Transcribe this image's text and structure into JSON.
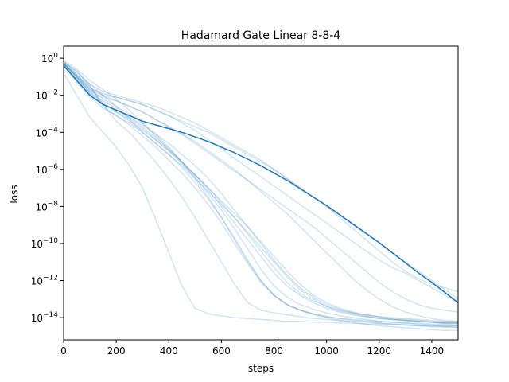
{
  "chart_data": {
    "type": "line",
    "title": "Hadamard Gate Linear 8-8-4",
    "xlabel": "steps",
    "ylabel": "loss",
    "xlim": [
      0,
      1500
    ],
    "yscale": "log",
    "ylim_log10": [
      -15.2,
      0.65
    ],
    "grid": false,
    "colors": {
      "run": "#1f77b4",
      "run_faint_opacity": 0.2,
      "axes": "#000000"
    },
    "x_ticks": [
      0,
      200,
      400,
      600,
      800,
      1000,
      1200,
      1400
    ],
    "x_tick_labels": [
      "0",
      "200",
      "400",
      "600",
      "800",
      "1000",
      "1200",
      "1400"
    ],
    "y_ticks_log10": [
      0,
      -2,
      -4,
      -6,
      -8,
      -10,
      -12,
      -14
    ],
    "y_tick_labels": [
      {
        "base": "10",
        "exp": "0"
      },
      {
        "base": "10",
        "exp": "−2"
      },
      {
        "base": "10",
        "exp": "−4"
      },
      {
        "base": "10",
        "exp": "−6"
      },
      {
        "base": "10",
        "exp": "−8"
      },
      {
        "base": "10",
        "exp": "−10"
      },
      {
        "base": "10",
        "exp": "−12"
      },
      {
        "base": "10",
        "exp": "−14"
      }
    ],
    "series_x": [
      0,
      50,
      100,
      150,
      200,
      250,
      300,
      350,
      400,
      450,
      500,
      550,
      600,
      650,
      700,
      750,
      800,
      850,
      900,
      950,
      1000,
      1050,
      1100,
      1150,
      1200,
      1250,
      1300,
      1350,
      1400,
      1450,
      1500
    ],
    "series": [
      {
        "highlight": true,
        "log10_loss": [
          -0.4,
          -1.2,
          -2.0,
          -2.5,
          -2.8,
          -3.1,
          -3.4,
          -3.6,
          -3.8,
          -4.0,
          -4.25,
          -4.5,
          -4.8,
          -5.1,
          -5.45,
          -5.8,
          -6.2,
          -6.6,
          -7.05,
          -7.5,
          -7.95,
          -8.45,
          -8.95,
          -9.45,
          -9.95,
          -10.5,
          -11.05,
          -11.6,
          -12.1,
          -12.65,
          -13.2
        ]
      },
      {
        "highlight": false,
        "log10_loss": [
          -0.8,
          -2.0,
          -3.2,
          -4.0,
          -4.8,
          -5.8,
          -7.0,
          -8.7,
          -10.5,
          -12.3,
          -13.5,
          -13.8,
          -13.9,
          -14.0,
          -14.05,
          -14.1,
          -14.15,
          -14.2,
          -14.2,
          -14.25,
          -14.25,
          -14.3,
          -14.3,
          -14.35,
          -14.35,
          -14.4,
          -14.4,
          -14.4,
          -14.45,
          -14.45,
          -14.45
        ]
      },
      {
        "highlight": false,
        "log10_loss": [
          -0.3,
          -0.9,
          -1.5,
          -2.5,
          -3.4,
          -4.0,
          -4.8,
          -5.6,
          -6.5,
          -7.5,
          -8.6,
          -9.8,
          -11.0,
          -12.2,
          -13.2,
          -13.6,
          -13.75,
          -13.85,
          -13.95,
          -14.05,
          -14.1,
          -14.15,
          -14.2,
          -14.25,
          -14.3,
          -14.35,
          -14.4,
          -14.45,
          -14.45,
          -14.5,
          -14.5
        ]
      },
      {
        "highlight": false,
        "log10_loss": [
          -0.2,
          -0.7,
          -1.5,
          -2.6,
          -3.1,
          -3.6,
          -4.2,
          -4.8,
          -5.5,
          -6.2,
          -7.0,
          -7.9,
          -8.9,
          -10.0,
          -11.1,
          -12.1,
          -12.8,
          -13.3,
          -13.6,
          -13.85,
          -14.0,
          -14.15,
          -14.25,
          -14.35,
          -14.45,
          -14.5,
          -14.55,
          -14.6,
          -14.65,
          -14.7,
          -14.7
        ]
      },
      {
        "highlight": false,
        "log10_loss": [
          -0.3,
          -1.0,
          -1.9,
          -2.5,
          -2.9,
          -3.3,
          -3.8,
          -4.4,
          -5.0,
          -5.7,
          -6.4,
          -7.3,
          -8.2,
          -9.2,
          -10.3,
          -11.4,
          -12.3,
          -12.9,
          -13.3,
          -13.55,
          -13.75,
          -13.9,
          -14.0,
          -14.1,
          -14.2,
          -14.25,
          -14.3,
          -14.35,
          -14.4,
          -14.45,
          -14.45
        ]
      },
      {
        "highlight": false,
        "log10_loss": [
          -0.4,
          -1.1,
          -1.9,
          -2.3,
          -2.7,
          -3.2,
          -3.7,
          -4.3,
          -4.9,
          -5.6,
          -6.3,
          -7.1,
          -8.0,
          -8.9,
          -9.8,
          -10.7,
          -11.6,
          -12.3,
          -12.8,
          -13.2,
          -13.5,
          -13.7,
          -13.85,
          -13.95,
          -14.05,
          -14.1,
          -14.15,
          -14.2,
          -14.25,
          -14.3,
          -14.3
        ]
      },
      {
        "highlight": false,
        "log10_loss": [
          -0.2,
          -0.8,
          -1.4,
          -2.0,
          -2.6,
          -3.3,
          -4.0,
          -4.6,
          -5.2,
          -5.8,
          -6.5,
          -7.2,
          -7.9,
          -8.6,
          -9.4,
          -10.2,
          -11.0,
          -11.8,
          -12.5,
          -13.0,
          -13.4,
          -13.65,
          -13.8,
          -13.95,
          -14.05,
          -14.1,
          -14.15,
          -14.2,
          -14.25,
          -14.3,
          -14.3
        ]
      },
      {
        "highlight": false,
        "log10_loss": [
          -0.3,
          -1.0,
          -1.8,
          -2.4,
          -2.9,
          -3.4,
          -3.9,
          -4.4,
          -5.0,
          -5.6,
          -6.3,
          -7.0,
          -7.8,
          -8.6,
          -9.5,
          -10.4,
          -11.3,
          -12.1,
          -12.7,
          -13.1,
          -13.4,
          -13.6,
          -13.75,
          -13.85,
          -13.95,
          -14.0,
          -14.05,
          -14.1,
          -14.15,
          -14.2,
          -14.2
        ]
      },
      {
        "highlight": false,
        "log10_loss": [
          -0.4,
          -1.3,
          -2.1,
          -2.7,
          -3.1,
          -3.5,
          -4.0,
          -4.6,
          -5.2,
          -5.9,
          -6.7,
          -7.6,
          -8.6,
          -9.7,
          -10.9,
          -12.0,
          -12.8,
          -13.3,
          -13.6,
          -13.8,
          -13.95,
          -14.05,
          -14.15,
          -14.2,
          -14.3,
          -14.35,
          -14.4,
          -14.45,
          -14.5,
          -14.5,
          -14.55
        ]
      },
      {
        "highlight": false,
        "log10_loss": [
          -0.1,
          -0.6,
          -1.2,
          -1.7,
          -2.2,
          -2.8,
          -3.5,
          -4.2,
          -4.9,
          -5.6,
          -6.3,
          -7.0,
          -7.7,
          -8.4,
          -9.1,
          -9.9,
          -10.7,
          -11.5,
          -12.2,
          -12.8,
          -13.2,
          -13.5,
          -13.7,
          -13.85,
          -13.95,
          -14.05,
          -14.1,
          -14.15,
          -14.2,
          -14.25,
          -14.3
        ]
      },
      {
        "highlight": false,
        "log10_loss": [
          -0.3,
          -1.0,
          -1.6,
          -2.0,
          -2.3,
          -2.6,
          -2.9,
          -3.3,
          -3.7,
          -4.1,
          -4.5,
          -5.0,
          -5.5,
          -6.0,
          -6.6,
          -7.2,
          -7.8,
          -8.4,
          -9.1,
          -9.8,
          -10.5,
          -11.2,
          -11.9,
          -12.5,
          -13.0,
          -13.4,
          -13.7,
          -13.9,
          -14.05,
          -14.15,
          -14.2
        ]
      },
      {
        "highlight": false,
        "log10_loss": [
          -0.3,
          -1.1,
          -1.8,
          -2.1,
          -2.3,
          -2.6,
          -2.9,
          -3.3,
          -3.7,
          -4.1,
          -4.6,
          -5.1,
          -5.6,
          -6.1,
          -6.6,
          -7.1,
          -7.6,
          -8.1,
          -8.6,
          -9.1,
          -9.7,
          -10.3,
          -10.9,
          -11.5,
          -12.1,
          -12.6,
          -13.0,
          -13.3,
          -13.5,
          -13.6,
          -13.7
        ]
      },
      {
        "highlight": false,
        "log10_loss": [
          -0.2,
          -0.9,
          -1.6,
          -1.9,
          -2.1,
          -2.3,
          -2.5,
          -2.8,
          -3.1,
          -3.5,
          -3.9,
          -4.4,
          -4.9,
          -5.4,
          -5.9,
          -6.4,
          -6.9,
          -7.4,
          -7.9,
          -8.4,
          -8.9,
          -9.4,
          -9.9,
          -10.4,
          -10.9,
          -11.3,
          -11.6,
          -12.0,
          -12.4,
          -12.8,
          -13.2
        ]
      },
      {
        "highlight": false,
        "log10_loss": [
          -0.3,
          -1.0,
          -1.7,
          -2.0,
          -2.1,
          -2.3,
          -2.5,
          -2.8,
          -3.1,
          -3.4,
          -3.7,
          -4.0,
          -4.4,
          -4.8,
          -5.2,
          -5.6,
          -6.0,
          -6.5,
          -7.0,
          -7.5,
          -8.0,
          -8.6,
          -9.2,
          -9.8,
          -10.4,
          -11.0,
          -11.5,
          -11.9,
          -12.2,
          -12.4,
          -12.6
        ]
      },
      {
        "highlight": false,
        "log10_loss": [
          -0.2,
          -0.7,
          -1.4,
          -1.8,
          -2.0,
          -2.2,
          -2.4,
          -2.6,
          -2.9,
          -3.2,
          -3.5,
          -3.9,
          -4.3,
          -4.7,
          -5.1,
          -5.5,
          -6.0,
          -6.5,
          -7.0,
          -7.5,
          -8.0,
          -8.5,
          -9.0,
          -9.5,
          -10.0,
          -10.5,
          -11.0,
          -11.5,
          -12.0,
          -12.5,
          -13.0
        ]
      },
      {
        "highlight": false,
        "log10_loss": [
          -0.4,
          -1.2,
          -2.0,
          -2.5,
          -2.8,
          -3.2,
          -3.6,
          -4.1,
          -4.6,
          -5.2,
          -5.8,
          -6.5,
          -7.3,
          -8.2,
          -9.1,
          -10.0,
          -10.9,
          -11.7,
          -12.4,
          -12.9,
          -13.3,
          -13.55,
          -13.75,
          -13.9,
          -14.0,
          -14.1,
          -14.15,
          -14.2,
          -14.25,
          -14.3,
          -14.3
        ]
      },
      {
        "highlight": false,
        "log10_loss": [
          -0.3,
          -0.9,
          -1.7,
          -2.2,
          -2.6,
          -3.0,
          -3.5,
          -4.1,
          -4.8,
          -5.6,
          -6.5,
          -7.5,
          -8.6,
          -9.8,
          -11.0,
          -12.0,
          -12.8,
          -13.3,
          -13.6,
          -13.8,
          -13.95,
          -14.05,
          -14.1,
          -14.15,
          -14.2,
          -14.25,
          -14.3,
          -14.3,
          -14.35,
          -14.35,
          -14.4
        ]
      }
    ]
  }
}
